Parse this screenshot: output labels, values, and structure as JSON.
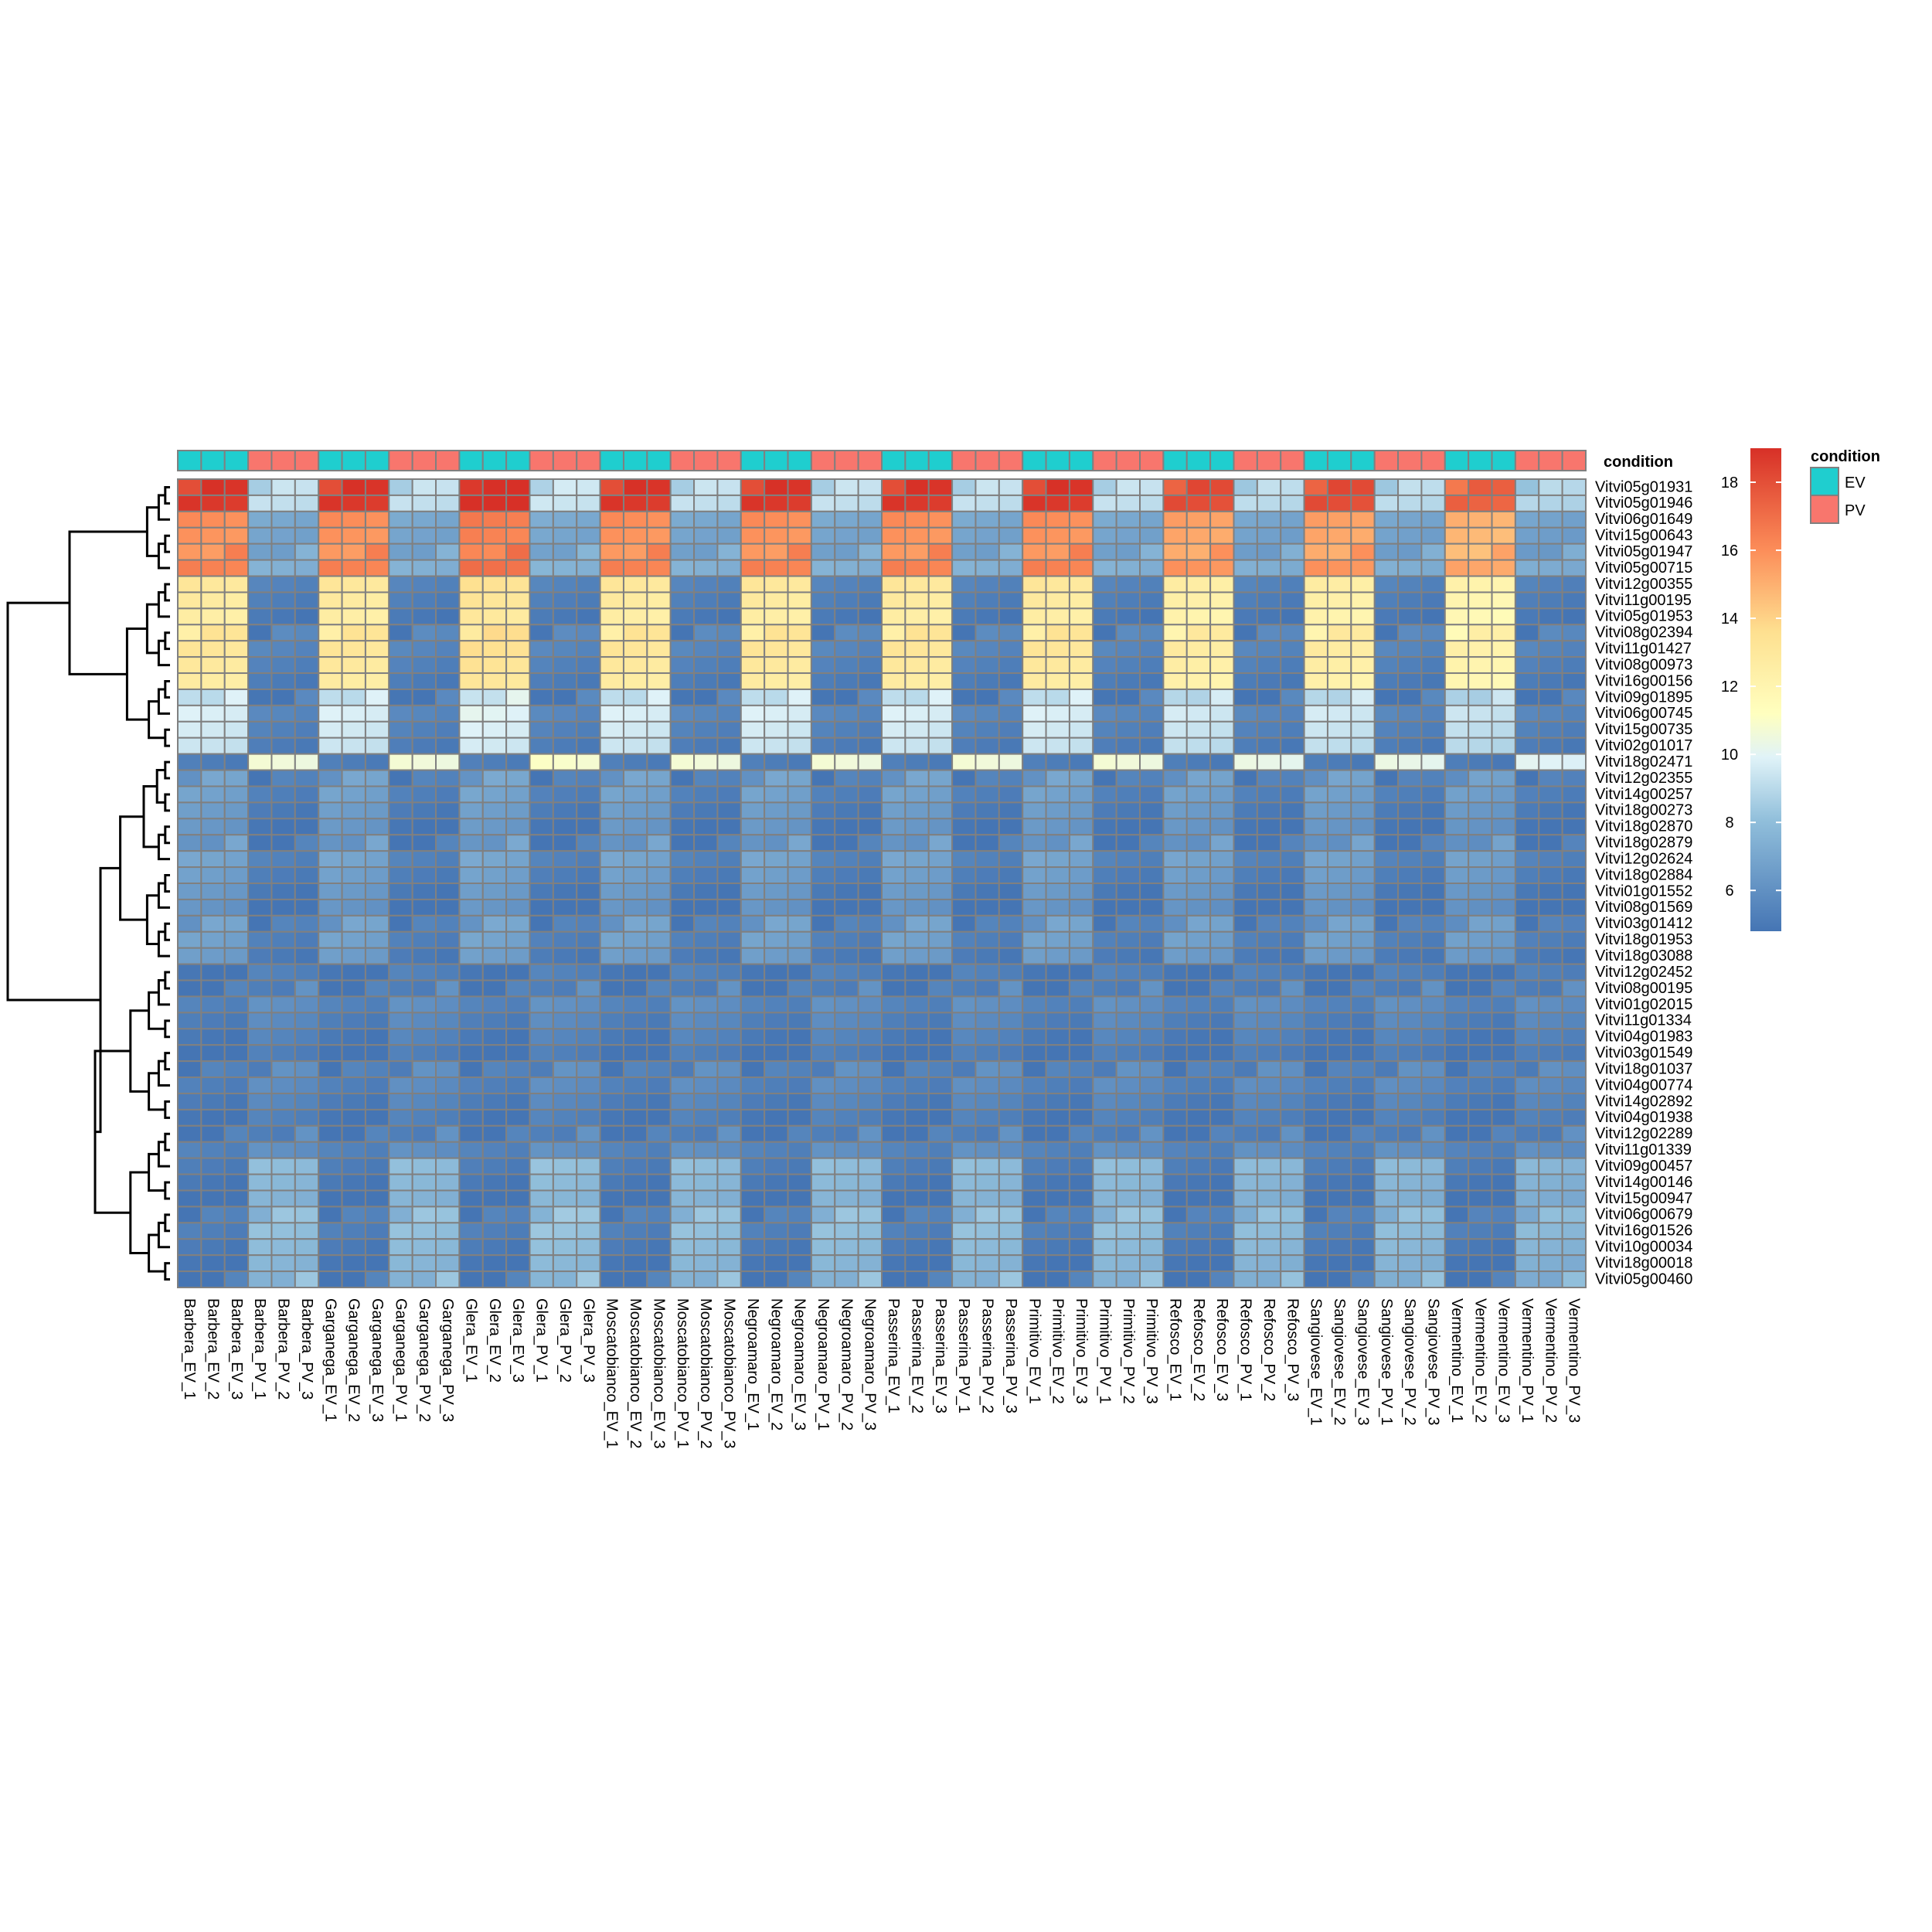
{
  "chart_data": {
    "type": "heatmap",
    "title": "",
    "annotation": {
      "title": "condition",
      "levels": [
        {
          "label": "EV",
          "color": "#1FCECF"
        },
        {
          "label": "PV",
          "color": "#F8766D"
        }
      ]
    },
    "colorbar": {
      "min": 4.8,
      "max": 19.0,
      "ticks": [
        "6",
        "8",
        "10",
        "12",
        "14",
        "16",
        "18"
      ],
      "tick_values": [
        6,
        8,
        10,
        12,
        14,
        16,
        18
      ],
      "colors": [
        "#4575B4",
        "#91BFDB",
        "#E0F3F8",
        "#FFFFBF",
        "#FEE090",
        "#FC8D59",
        "#D73027"
      ]
    },
    "samples": [
      "Barbera_EV_1",
      "Barbera_EV_2",
      "Barbera_EV_3",
      "Barbera_PV_1",
      "Barbera_PV_2",
      "Barbera_PV_3",
      "Garganega_EV_1",
      "Garganega_EV_2",
      "Garganega_EV_3",
      "Garganega_PV_1",
      "Garganega_PV_2",
      "Garganega_PV_3",
      "Glera_EV_1",
      "Glera_EV_2",
      "Glera_EV_3",
      "Glera_PV_1",
      "Glera_PV_2",
      "Glera_PV_3",
      "Moscatobianco_EV_1",
      "Moscatobianco_EV_2",
      "Moscatobianco_EV_3",
      "Moscatobianco_PV_1",
      "Moscatobianco_PV_2",
      "Moscatobianco_PV_3",
      "Negroamaro_EV_1",
      "Negroamaro_EV_2",
      "Negroamaro_EV_3",
      "Negroamaro_PV_1",
      "Negroamaro_PV_2",
      "Negroamaro_PV_3",
      "Passerina_EV_1",
      "Passerina_EV_2",
      "Passerina_EV_3",
      "Passerina_PV_1",
      "Passerina_PV_2",
      "Passerina_PV_3",
      "Primitivo_EV_1",
      "Primitivo_EV_2",
      "Primitivo_EV_3",
      "Primitivo_PV_1",
      "Primitivo_PV_2",
      "Primitivo_PV_3",
      "Refosco_EV_1",
      "Refosco_EV_2",
      "Refosco_EV_3",
      "Refosco_PV_1",
      "Refosco_PV_2",
      "Refosco_PV_3",
      "Sangiovese_EV_1",
      "Sangiovese_EV_2",
      "Sangiovese_EV_3",
      "Sangiovese_PV_1",
      "Sangiovese_PV_2",
      "Sangiovese_PV_3",
      "Vermentino_EV_1",
      "Vermentino_EV_2",
      "Vermentino_EV_3",
      "Vermentino_PV_1",
      "Vermentino_PV_2",
      "Vermentino_PV_3"
    ],
    "conditions": [
      "EV",
      "EV",
      "EV",
      "PV",
      "PV",
      "PV",
      "EV",
      "EV",
      "EV",
      "PV",
      "PV",
      "PV",
      "EV",
      "EV",
      "EV",
      "PV",
      "PV",
      "PV",
      "EV",
      "EV",
      "EV",
      "PV",
      "PV",
      "PV",
      "EV",
      "EV",
      "EV",
      "PV",
      "PV",
      "PV",
      "EV",
      "EV",
      "EV",
      "PV",
      "PV",
      "PV",
      "EV",
      "EV",
      "EV",
      "PV",
      "PV",
      "PV",
      "EV",
      "EV",
      "EV",
      "PV",
      "PV",
      "PV",
      "EV",
      "EV",
      "EV",
      "PV",
      "PV",
      "PV",
      "EV",
      "EV",
      "EV",
      "PV",
      "PV",
      "PV"
    ],
    "genes": [
      "Vitvi05g01931",
      "Vitvi05g01946",
      "Vitvi06g01649",
      "Vitvi15g00643",
      "Vitvi05g01947",
      "Vitvi05g00715",
      "Vitvi12g00355",
      "Vitvi11g00195",
      "Vitvi05g01953",
      "Vitvi08g02394",
      "Vitvi11g01427",
      "Vitvi08g00973",
      "Vitvi16g00156",
      "Vitvi09g01895",
      "Vitvi06g00745",
      "Vitvi15g00735",
      "Vitvi02g01017",
      "Vitvi18g02471",
      "Vitvi12g02355",
      "Vitvi14g00257",
      "Vitvi18g00273",
      "Vitvi18g02870",
      "Vitvi18g02879",
      "Vitvi12g02624",
      "Vitvi18g02884",
      "Vitvi01g01552",
      "Vitvi08g01569",
      "Vitvi03g01412",
      "Vitvi18g01953",
      "Vitvi18g03088",
      "Vitvi12g02452",
      "Vitvi08g00195",
      "Vitvi01g02015",
      "Vitvi11g01334",
      "Vitvi04g01983",
      "Vitvi03g01549",
      "Vitvi18g01037",
      "Vitvi04g00774",
      "Vitvi14g02892",
      "Vitvi04g01938",
      "Vitvi12g02289",
      "Vitvi11g01339",
      "Vitvi09g00457",
      "Vitvi14g00146",
      "Vitvi15g00947",
      "Vitvi06g00679",
      "Vitvi16g01526",
      "Vitvi10g00034",
      "Vitvi18g00018",
      "Vitvi05g00460"
    ],
    "gene_group_profiles": [
      {
        "genes": [
          "Vitvi05g01931",
          "Vitvi05g01946"
        ],
        "EV": 18.5,
        "PV": 9.0
      },
      {
        "genes": [
          "Vitvi06g01649",
          "Vitvi15g00643",
          "Vitvi05g01947",
          "Vitvi05g00715"
        ],
        "EV": 16.0,
        "PV": 7.0
      },
      {
        "genes": [
          "Vitvi12g00355",
          "Vitvi11g00195",
          "Vitvi05g01953",
          "Vitvi08g02394",
          "Vitvi11g01427",
          "Vitvi08g00973",
          "Vitvi16g00156"
        ],
        "EV": 12.8,
        "PV": 5.3
      },
      {
        "genes": [
          "Vitvi09g01895",
          "Vitvi06g00745",
          "Vitvi15g00735",
          "Vitvi02g01017"
        ],
        "EV": 9.5,
        "PV": 5.2
      },
      {
        "genes": [
          "Vitvi18g02471"
        ],
        "EV": 5.5,
        "PV": 11.0
      },
      {
        "genes": [
          "Vitvi12g02355",
          "Vitvi14g00257",
          "Vitvi18g00273",
          "Vitvi18g02870",
          "Vitvi18g02879",
          "Vitvi12g02624",
          "Vitvi18g02884",
          "Vitvi01g01552",
          "Vitvi08g01569",
          "Vitvi03g01412",
          "Vitvi18g01953",
          "Vitvi18g03088"
        ],
        "EV": 6.5,
        "PV": 5.0
      },
      {
        "genes": [
          "Vitvi12g02452",
          "Vitvi08g00195",
          "Vitvi01g02015",
          "Vitvi11g01334",
          "Vitvi04g01983",
          "Vitvi03g01549",
          "Vitvi18g01037",
          "Vitvi04g00774",
          "Vitvi14g02892",
          "Vitvi04g01938",
          "Vitvi12g02289",
          "Vitvi11g01339"
        ],
        "EV": 5.0,
        "PV": 5.6
      },
      {
        "genes": [
          "Vitvi09g00457",
          "Vitvi14g00146",
          "Vitvi15g00947",
          "Vitvi06g00679",
          "Vitvi16g01526",
          "Vitvi10g00034",
          "Vitvi18g00018",
          "Vitvi05g00460"
        ],
        "EV": 5.0,
        "PV": 7.8
      }
    ],
    "variety_scale": [
      1.0,
      1.0,
      1.05,
      1.0,
      1.0,
      1.0,
      1.0,
      0.95,
      0.95,
      0.9
    ],
    "cell_border_color": "#808080",
    "dendrogram": "rows",
    "legend_position": "right"
  }
}
